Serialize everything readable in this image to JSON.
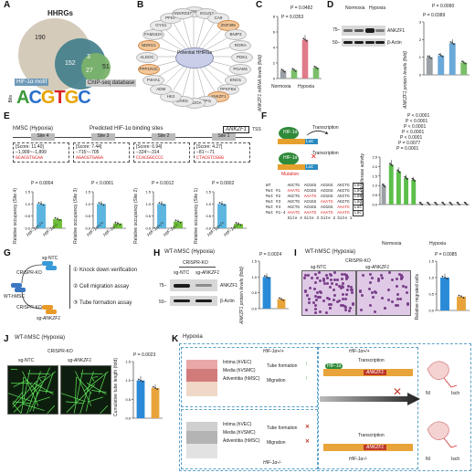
{
  "A": {
    "label": "A",
    "hhrgs": "HHRGs",
    "n190": "190",
    "n152": "152",
    "n3": "3",
    "n51": "51",
    "n27": "27",
    "chip": "ChIP-seq database",
    "hif": "HIF-1α motif",
    "motif": "ACGTGC",
    "bits": "Bits"
  },
  "B": {
    "label": "B",
    "center": "Potential HHRGs",
    "genes": [
      "KDM4B",
      "EGLN3",
      "CA9",
      "ZNF395",
      "BNIP3",
      "RORA",
      "PDK1",
      "PGAM1",
      "ENO1",
      "PFKFB4",
      "ANKZF1",
      "TPI1",
      "ALDOA",
      "DARS",
      "HK2",
      "ADM",
      "P4HA1",
      "PPP1R3C",
      "ALDOC",
      "NDRG1",
      "FAM162A",
      "GYS1",
      "PFKP",
      "ANKRD37"
    ]
  },
  "C": {
    "label": "C",
    "ylabel": "ANKZF1 mRNA levels (fold)",
    "p1": "P = 0.0482",
    "p2": "P = 0.0353",
    "yticks": [
      "0",
      "2",
      "4",
      "6",
      "8"
    ],
    "g1": "Normoxia",
    "g2": "Hypoxia",
    "legend": "+/+   -/-"
  },
  "D": {
    "label": "D",
    "normoxia": "Normoxia",
    "hypoxia": "Hypoxia",
    "lanes": [
      "HIF-1α+/+",
      "HIF-1α-/-",
      "HIF-1α+/+",
      "HIF-1α-/-"
    ],
    "mw1": "75–",
    "mw2": "50–",
    "ankzf1": "ANKZF1",
    "actin": "β-Actin",
    "ylabel": "ANKZF1 protein levels (fold)",
    "p1": "P = 0.0090",
    "p2": "P = 0.0389",
    "yticks": [
      "0",
      "1",
      "2",
      "3"
    ]
  },
  "E": {
    "label": "E",
    "context": "hMSC (Hypoxia)",
    "title": "Predicted HIF-1α binding sites",
    "gene": "ANKZF1",
    "tss": "TSS",
    "sites": [
      {
        "name": "Site 4",
        "score": "[Score: 11.40]",
        "range": "−1,909~−1,899",
        "seq": "GCACGTGCAA"
      },
      {
        "name": "Site 3",
        "score": "[Score: 7.44]",
        "range": "−715~−705",
        "seq": "AGACGTGAGA"
      },
      {
        "name": "Site 2",
        "score": "[Score: 6.94]",
        "range": "−324~−314",
        "seq": "CCACGGCCCC"
      },
      {
        "name": "Site 1",
        "score": "[Score: 4.27]",
        "range": "−81~−71",
        "seq": "CTACGTCGGG"
      }
    ],
    "pvals": [
      "P = 0.0004",
      "P < 0.0001",
      "P = 0.0012",
      "P = 0.0002"
    ],
    "ylabel": "Relative occupancy (Site {n})",
    "xcats": [
      "HIF-1α+/+",
      "HIF-1α-/-"
    ],
    "yticks": [
      "0.0",
      "0.5",
      "1.0",
      "1.5"
    ]
  },
  "F": {
    "label": "F",
    "hif": "HIF-1α",
    "transcription": "Transcription",
    "luc": "Luc",
    "mutation": "Mutation",
    "ylabel": "Relative luciferase activity",
    "rows": [
      "WT",
      "Mut #1",
      "Mut #2",
      "Mut #3",
      "Mut #4",
      "Mut #1-4"
    ],
    "sites_header": [
      "Site 4",
      "Site 3",
      "Site 2",
      "Site 1"
    ],
    "pvals": [
      "P < 0.0001",
      "P < 0.0001",
      "P < 0.0001",
      "P < 0.0001",
      "P < 0.0001",
      "P = 0.0077",
      "P = 0.0001"
    ],
    "normoxia": "Normoxia",
    "hypoxia": "Hypoxia",
    "yticks": [
      "0.0",
      "0.5",
      "1.0",
      "1.5",
      "2.0",
      "2.5"
    ]
  },
  "G": {
    "label": "G",
    "sgntc": "sg-NTC",
    "crispr": "CRISPR-KO",
    "wt": "WT-hMSC",
    "sgank": "sg-ANKZF1",
    "steps": [
      "① Knock down verification",
      "② Cell migration assay",
      "③ Tube formation assay"
    ]
  },
  "H": {
    "label": "H",
    "title": "WT-hMSC (Hypoxia)",
    "crispr": "CRISPR-KO",
    "lanes": [
      "sg-NTC",
      "sg-ANKZF1"
    ],
    "mw1": "75–",
    "mw2": "50–",
    "ankzf1": "ANKZF1",
    "actin": "β-Actin",
    "ylabel": "ANKZF1 protein levels (fold)",
    "p": "P = 0.0024",
    "xcats": [
      "sg-NTC",
      "sg-ANKZF1"
    ],
    "yticks": [
      "0.0",
      "0.5",
      "1.0",
      "1.5"
    ]
  },
  "I": {
    "label": "I",
    "title": "WT-hMSC (Hypoxia)",
    "crispr": "CRISPR-KO",
    "img1": "sg-NTC",
    "img2": "sg-ANKZF1",
    "ylabel": "Relative migrated cells",
    "p": "P = 0.0085",
    "xcats": [
      "sg-NTC",
      "sg-ANKZF1"
    ],
    "yticks": [
      "0.0",
      "0.5",
      "1.0",
      "1.5"
    ]
  },
  "J": {
    "label": "J",
    "title": "WT-hMSC (Hypoxia)",
    "crispr": "CRISPR-KO",
    "img1": "sg-NTC",
    "img2": "sg-ANKZF1",
    "ylabel": "Cumulative tube length (fold)",
    "p": "P = 0.0023",
    "xcats": [
      "sg-NTC",
      "sg-ANKZF1"
    ],
    "yticks": [
      "0.0",
      "0.5",
      "1.0",
      "1.5"
    ]
  },
  "K": {
    "label": "K",
    "title": "Hypoxia",
    "layers": [
      "Intima (hVEC)",
      "Media (hVSMC)",
      "Adventitia (hMSC)"
    ],
    "wt": "HIF-1α+/+",
    "ko": "HIF-1α-/-",
    "tube": "Tube formation",
    "migration": "Migration",
    "transcription": "Transcription",
    "gene": "ANKZF1",
    "hif": "HIF-1α",
    "ni": "NI",
    "isch": "Isch"
  },
  "chart_data": [
    {
      "type": "bar",
      "panel": "C",
      "categories": [
        "Normoxia HIF-1α+/+",
        "Normoxia HIF-1α-/-",
        "Hypoxia HIF-1α+/+",
        "Hypoxia HIF-1α-/-"
      ],
      "values": [
        1.0,
        1.1,
        5.0,
        1.4
      ],
      "ylim": [
        0,
        8
      ],
      "ylabel": "ANKZF1 mRNA levels (fold)"
    },
    {
      "type": "bar",
      "panel": "D",
      "categories": [
        "Normoxia +/+",
        "Normoxia -/-",
        "Hypoxia +/+",
        "Hypoxia -/-"
      ],
      "values": [
        1.0,
        1.1,
        1.8,
        0.7
      ],
      "ylim": [
        0,
        3
      ],
      "ylabel": "ANKZF1 protein levels (fold)"
    },
    {
      "type": "bar",
      "panel": "E",
      "series": [
        {
          "name": "Site 4",
          "values": [
            1.0,
            0.38
          ]
        },
        {
          "name": "Site 3",
          "values": [
            1.0,
            0.2
          ]
        },
        {
          "name": "Site 2",
          "values": [
            1.0,
            0.28
          ]
        },
        {
          "name": "Site 1",
          "values": [
            1.0,
            0.18
          ]
        }
      ],
      "categories": [
        "HIF-1α+/+",
        "HIF-1α-/-"
      ],
      "ylim": [
        0,
        1.5
      ]
    },
    {
      "type": "bar",
      "panel": "F",
      "categories": [
        "WT",
        "Mut #1",
        "Mut #2",
        "Mut #3",
        "Mut #4",
        "Mut #1-4",
        "WT",
        "Mut #1",
        "Mut #2",
        "Mut #3",
        "Mut #4",
        "Mut #1-4"
      ],
      "values": [
        1.0,
        2.1,
        1.75,
        1.4,
        1.3,
        0.05,
        0.05,
        0.05,
        0.05,
        0.05,
        0.05,
        0.05
      ],
      "ylim": [
        0,
        2.5
      ],
      "ylabel": "Relative luciferase activity"
    },
    {
      "type": "bar",
      "panel": "H",
      "categories": [
        "sg-NTC",
        "sg-ANKZF1"
      ],
      "values": [
        1.0,
        0.3
      ],
      "ylim": [
        0,
        1.5
      ],
      "ylabel": "ANKZF1 protein levels (fold)"
    },
    {
      "type": "bar",
      "panel": "I",
      "categories": [
        "sg-NTC",
        "sg-ANKZF1"
      ],
      "values": [
        1.0,
        0.42
      ],
      "ylim": [
        0,
        1.5
      ],
      "ylabel": "Relative migrated cells"
    },
    {
      "type": "bar",
      "panel": "J",
      "categories": [
        "sg-NTC",
        "sg-ANKZF1"
      ],
      "values": [
        1.0,
        0.8
      ],
      "ylim": [
        0,
        1.5
      ],
      "ylabel": "Cumulative tube length (fold)"
    }
  ]
}
